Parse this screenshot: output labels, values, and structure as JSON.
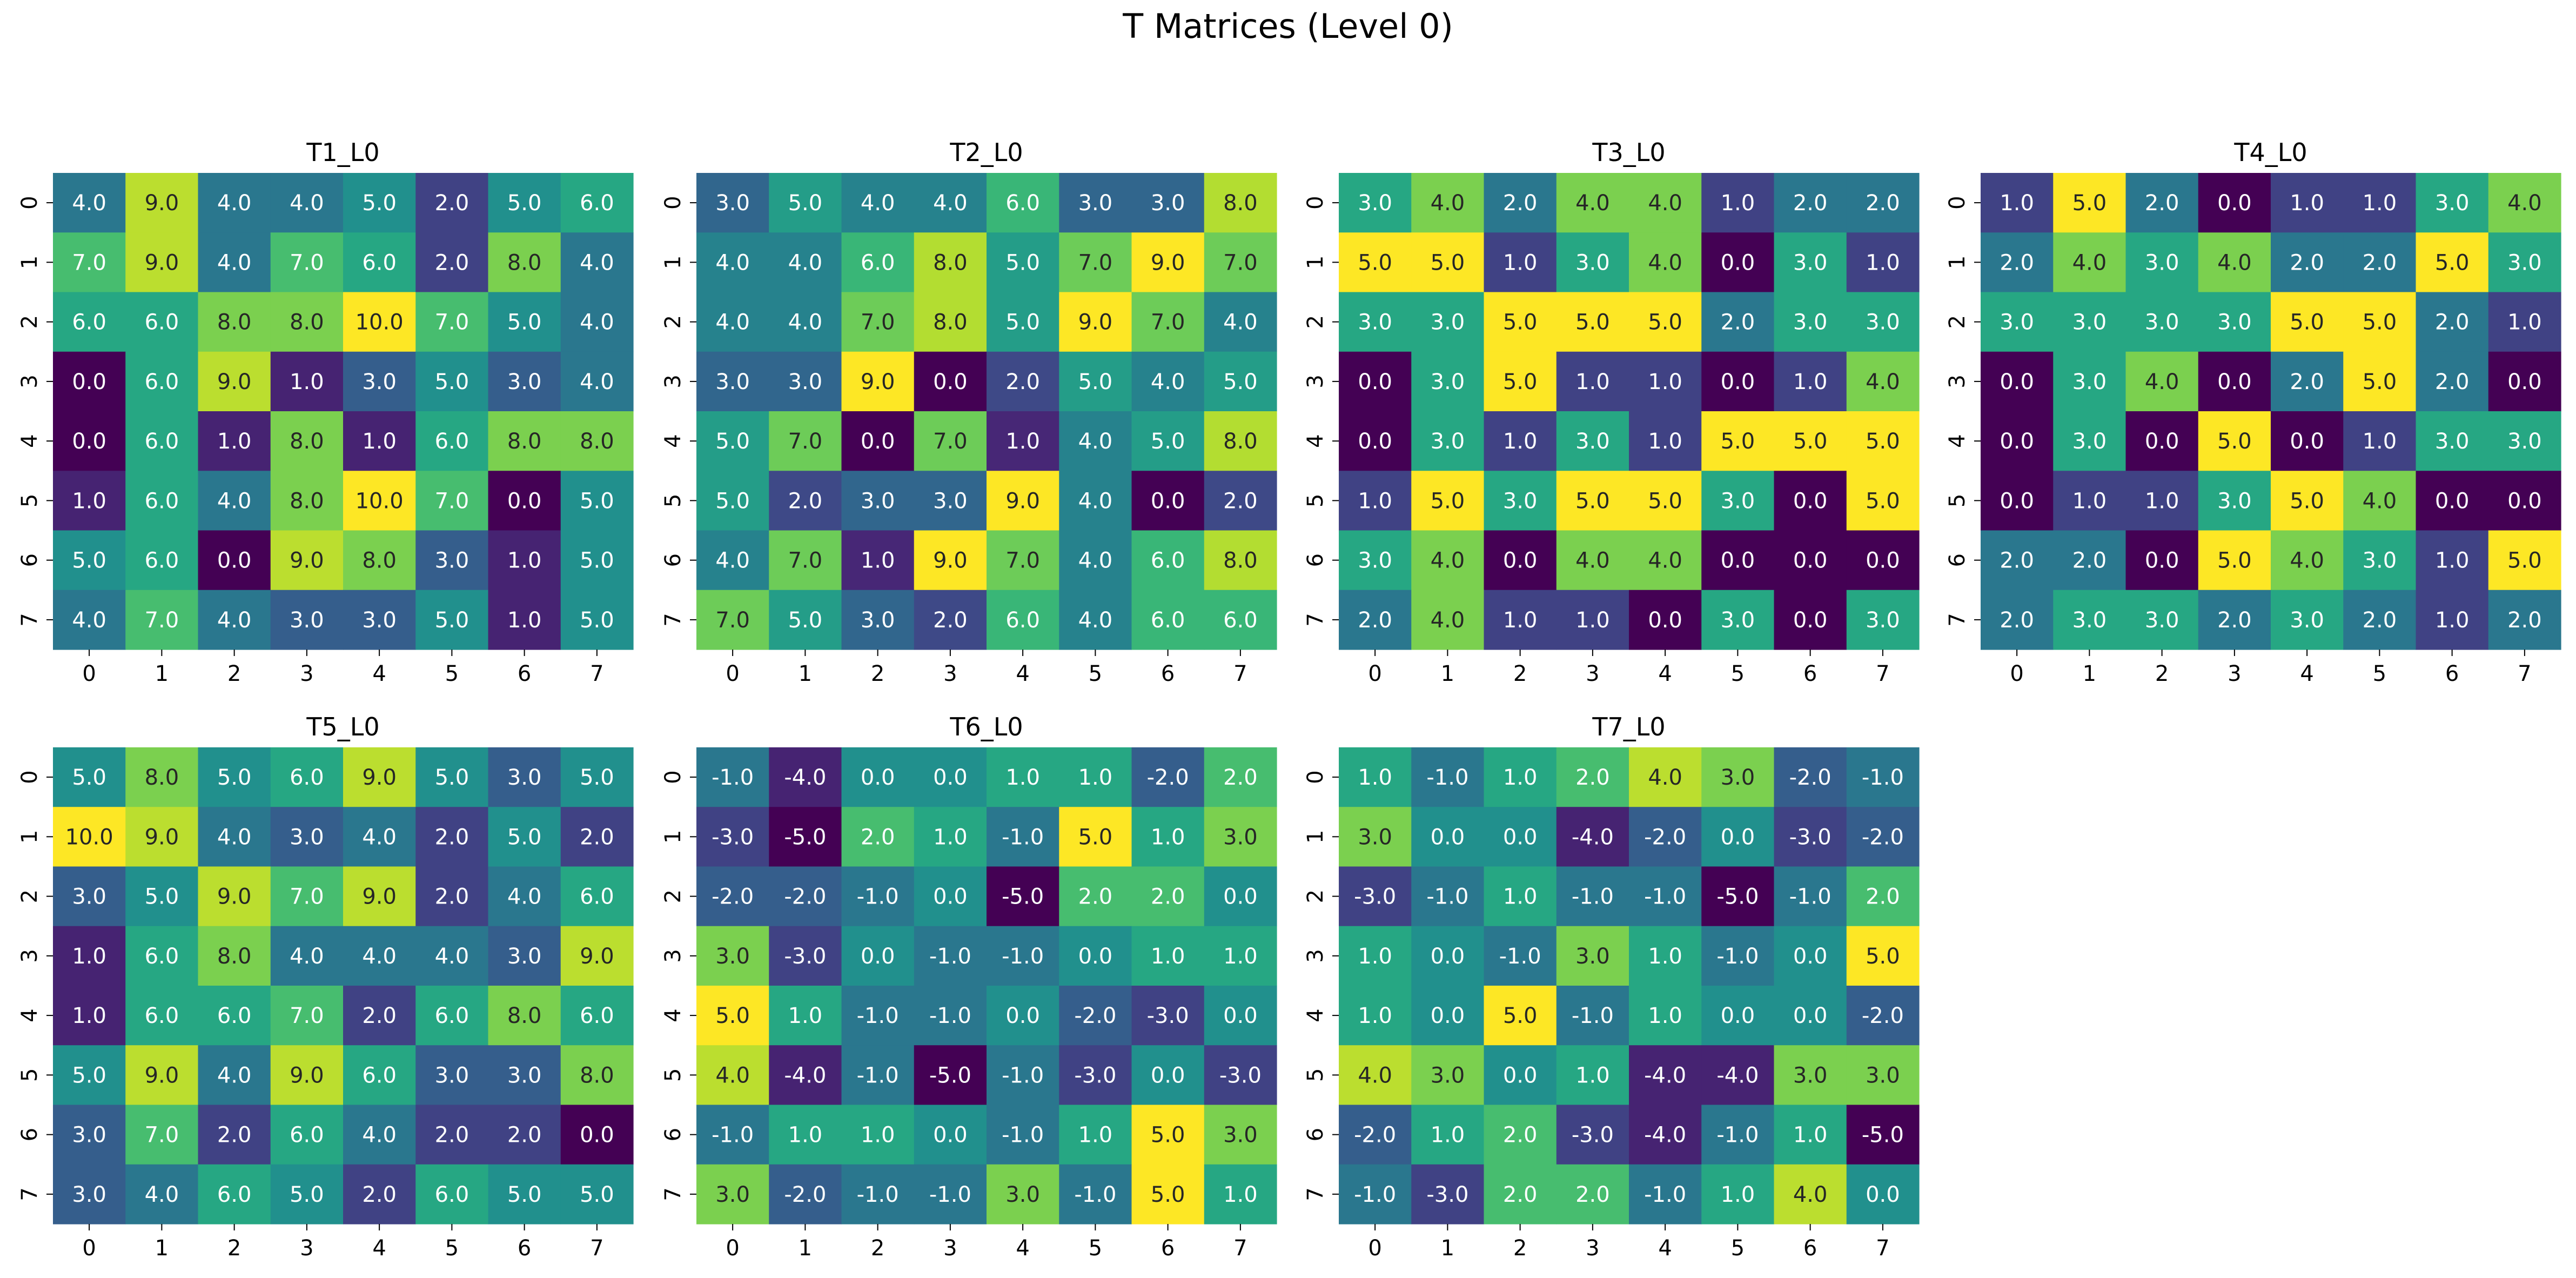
{
  "figure": {
    "title": "T Matrices (Level 0)"
  },
  "chart_data": [
    {
      "type": "heatmap",
      "title": "T1_L0",
      "x_ticks": [
        "0",
        "1",
        "2",
        "3",
        "4",
        "5",
        "6",
        "7"
      ],
      "y_ticks": [
        "0",
        "1",
        "2",
        "3",
        "4",
        "5",
        "6",
        "7"
      ],
      "colormap": "viridis",
      "values": [
        [
          4,
          9,
          4,
          4,
          5,
          2,
          5,
          6
        ],
        [
          7,
          9,
          4,
          7,
          6,
          2,
          8,
          4
        ],
        [
          6,
          6,
          8,
          8,
          10,
          7,
          5,
          4
        ],
        [
          0,
          6,
          9,
          1,
          3,
          5,
          3,
          4
        ],
        [
          0,
          6,
          1,
          8,
          1,
          6,
          8,
          8
        ],
        [
          1,
          6,
          4,
          8,
          10,
          7,
          0,
          5
        ],
        [
          5,
          6,
          0,
          9,
          8,
          3,
          1,
          5
        ],
        [
          4,
          7,
          4,
          3,
          3,
          5,
          1,
          5
        ]
      ]
    },
    {
      "type": "heatmap",
      "title": "T2_L0",
      "x_ticks": [
        "0",
        "1",
        "2",
        "3",
        "4",
        "5",
        "6",
        "7"
      ],
      "y_ticks": [
        "0",
        "1",
        "2",
        "3",
        "4",
        "5",
        "6",
        "7"
      ],
      "colormap": "viridis",
      "values": [
        [
          3,
          5,
          4,
          4,
          6,
          3,
          3,
          8
        ],
        [
          4,
          4,
          6,
          8,
          5,
          7,
          9,
          7
        ],
        [
          4,
          4,
          7,
          8,
          5,
          9,
          7,
          4
        ],
        [
          3,
          3,
          9,
          0,
          2,
          5,
          4,
          5
        ],
        [
          5,
          7,
          0,
          7,
          1,
          4,
          5,
          8
        ],
        [
          5,
          2,
          3,
          3,
          9,
          4,
          0,
          2
        ],
        [
          4,
          7,
          1,
          9,
          7,
          4,
          6,
          8
        ],
        [
          7,
          5,
          3,
          2,
          6,
          4,
          6,
          6
        ]
      ]
    },
    {
      "type": "heatmap",
      "title": "T3_L0",
      "x_ticks": [
        "0",
        "1",
        "2",
        "3",
        "4",
        "5",
        "6",
        "7"
      ],
      "y_ticks": [
        "0",
        "1",
        "2",
        "3",
        "4",
        "5",
        "6",
        "7"
      ],
      "colormap": "viridis",
      "values": [
        [
          3,
          4,
          2,
          4,
          4,
          1,
          2,
          2
        ],
        [
          5,
          5,
          1,
          3,
          4,
          0,
          3,
          1
        ],
        [
          3,
          3,
          5,
          5,
          5,
          2,
          3,
          3
        ],
        [
          0,
          3,
          5,
          1,
          1,
          0,
          1,
          4
        ],
        [
          0,
          3,
          1,
          3,
          1,
          5,
          5,
          5
        ],
        [
          1,
          5,
          3,
          5,
          5,
          3,
          0,
          5
        ],
        [
          3,
          4,
          0,
          4,
          4,
          0,
          0,
          0
        ],
        [
          2,
          4,
          1,
          1,
          0,
          3,
          0,
          3
        ]
      ]
    },
    {
      "type": "heatmap",
      "title": "T4_L0",
      "x_ticks": [
        "0",
        "1",
        "2",
        "3",
        "4",
        "5",
        "6",
        "7"
      ],
      "y_ticks": [
        "0",
        "1",
        "2",
        "3",
        "4",
        "5",
        "6",
        "7"
      ],
      "colormap": "viridis",
      "values": [
        [
          1,
          5,
          2,
          0,
          1,
          1,
          3,
          4
        ],
        [
          2,
          4,
          3,
          4,
          2,
          2,
          5,
          3
        ],
        [
          3,
          3,
          3,
          3,
          5,
          5,
          2,
          1
        ],
        [
          0,
          3,
          4,
          0,
          2,
          5,
          2,
          0
        ],
        [
          0,
          3,
          0,
          5,
          0,
          1,
          3,
          3
        ],
        [
          0,
          1,
          1,
          3,
          5,
          4,
          0,
          0
        ],
        [
          2,
          2,
          0,
          5,
          4,
          3,
          1,
          5
        ],
        [
          2,
          3,
          3,
          2,
          3,
          2,
          1,
          2
        ]
      ]
    },
    {
      "type": "heatmap",
      "title": "T5_L0",
      "x_ticks": [
        "0",
        "1",
        "2",
        "3",
        "4",
        "5",
        "6",
        "7"
      ],
      "y_ticks": [
        "0",
        "1",
        "2",
        "3",
        "4",
        "5",
        "6",
        "7"
      ],
      "colormap": "viridis",
      "values": [
        [
          5,
          8,
          5,
          6,
          9,
          5,
          3,
          5
        ],
        [
          10,
          9,
          4,
          3,
          4,
          2,
          5,
          2
        ],
        [
          3,
          5,
          9,
          7,
          9,
          2,
          4,
          6
        ],
        [
          1,
          6,
          8,
          4,
          4,
          4,
          3,
          9
        ],
        [
          1,
          6,
          6,
          7,
          2,
          6,
          8,
          6
        ],
        [
          5,
          9,
          4,
          9,
          6,
          3,
          3,
          8
        ],
        [
          3,
          7,
          2,
          6,
          4,
          2,
          2,
          0
        ],
        [
          3,
          4,
          6,
          5,
          2,
          6,
          5,
          5
        ]
      ]
    },
    {
      "type": "heatmap",
      "title": "T6_L0",
      "x_ticks": [
        "0",
        "1",
        "2",
        "3",
        "4",
        "5",
        "6",
        "7"
      ],
      "y_ticks": [
        "0",
        "1",
        "2",
        "3",
        "4",
        "5",
        "6",
        "7"
      ],
      "colormap": "viridis",
      "values": [
        [
          -1,
          -4,
          0,
          0,
          1,
          1,
          -2,
          2
        ],
        [
          -3,
          -5,
          2,
          1,
          -1,
          5,
          1,
          3
        ],
        [
          -2,
          -2,
          -1,
          0,
          -5,
          2,
          2,
          0
        ],
        [
          3,
          -3,
          0,
          -1,
          -1,
          0,
          1,
          1
        ],
        [
          5,
          1,
          -1,
          -1,
          0,
          -2,
          -3,
          0
        ],
        [
          4,
          -4,
          -1,
          -5,
          -1,
          -3,
          0,
          -3
        ],
        [
          -1,
          1,
          1,
          0,
          -1,
          1,
          5,
          3
        ],
        [
          3,
          -2,
          -1,
          -1,
          3,
          -1,
          5,
          1
        ]
      ]
    },
    {
      "type": "heatmap",
      "title": "T7_L0",
      "x_ticks": [
        "0",
        "1",
        "2",
        "3",
        "4",
        "5",
        "6",
        "7"
      ],
      "y_ticks": [
        "0",
        "1",
        "2",
        "3",
        "4",
        "5",
        "6",
        "7"
      ],
      "colormap": "viridis",
      "values": [
        [
          1,
          -1,
          1,
          2,
          4,
          3,
          -2,
          -1
        ],
        [
          3,
          0,
          0,
          -4,
          -2,
          0,
          -3,
          -2
        ],
        [
          -3,
          -1,
          1,
          -1,
          -1,
          -5,
          -1,
          2
        ],
        [
          1,
          0,
          -1,
          3,
          1,
          -1,
          0,
          5
        ],
        [
          1,
          0,
          5,
          -1,
          1,
          0,
          0,
          -2
        ],
        [
          4,
          3,
          0,
          1,
          -4,
          -4,
          3,
          3
        ],
        [
          -2,
          1,
          2,
          -3,
          -4,
          -1,
          1,
          -5
        ],
        [
          -1,
          -3,
          2,
          2,
          -1,
          1,
          4,
          0
        ]
      ]
    }
  ]
}
